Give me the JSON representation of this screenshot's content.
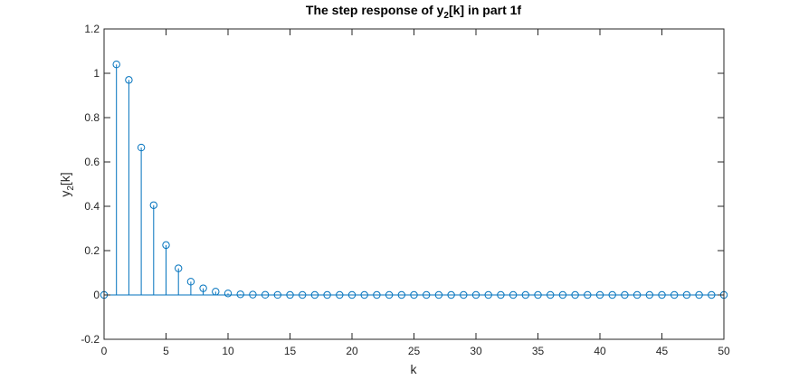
{
  "chart_data": {
    "type": "stem",
    "title": {
      "prefix": "The step response of y",
      "subscript": "2",
      "suffix": "[k] in part 1f"
    },
    "xlabel": "k",
    "ylabel": {
      "base": "y",
      "subscript": "2",
      "suffix": "[k]"
    },
    "xlim": [
      0,
      50
    ],
    "ylim": [
      -0.2,
      1.2
    ],
    "xticks": [
      0,
      5,
      10,
      15,
      20,
      25,
      30,
      35,
      40,
      45,
      50
    ],
    "yticks": [
      -0.2,
      0,
      0.2,
      0.4,
      0.6,
      0.8,
      1,
      1.2
    ],
    "ytick_labels": [
      "-0.2",
      "0",
      "0.2",
      "0.4",
      "0.6",
      "0.8",
      "1",
      "1.2"
    ],
    "grid": false,
    "box": true,
    "series": [
      {
        "color": "#0072bd",
        "marker": "circle",
        "x": [
          0,
          1,
          2,
          3,
          4,
          5,
          6,
          7,
          8,
          9,
          10,
          11,
          12,
          13,
          14,
          15,
          16,
          17,
          18,
          19,
          20,
          21,
          22,
          23,
          24,
          25,
          26,
          27,
          28,
          29,
          30,
          31,
          32,
          33,
          34,
          35,
          36,
          37,
          38,
          39,
          40,
          41,
          42,
          43,
          44,
          45,
          46,
          47,
          48,
          49,
          50
        ],
        "y": [
          0,
          1.04,
          0.97,
          0.665,
          0.405,
          0.225,
          0.12,
          0.06,
          0.03,
          0.015,
          0.007,
          0.003,
          0.0015,
          0.0007,
          0.0003,
          0.0001,
          0,
          0,
          0,
          0,
          0,
          0,
          0,
          0,
          0,
          0,
          0,
          0,
          0,
          0,
          0,
          0,
          0,
          0,
          0,
          0,
          0,
          0,
          0,
          0,
          0,
          0,
          0,
          0,
          0,
          0,
          0,
          0,
          0,
          0,
          0
        ]
      }
    ]
  }
}
